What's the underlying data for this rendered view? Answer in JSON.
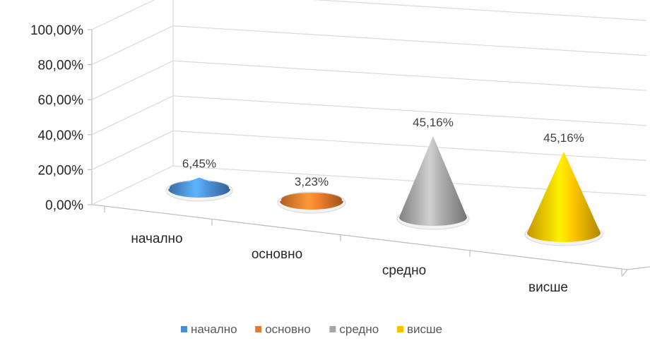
{
  "chart_data": {
    "type": "bar",
    "shape": "3d-cone",
    "title": "",
    "xlabel": "",
    "ylabel": "",
    "categories": [
      "начално",
      "основно",
      "средно",
      "висше"
    ],
    "values": [
      6.45,
      3.23,
      45.16,
      45.16
    ],
    "data_labels": [
      "6,45%",
      "3,23%",
      "45,16%",
      "45,16%"
    ],
    "ylim": [
      0,
      100
    ],
    "y_ticks": [
      "0,00%",
      "20,00%",
      "40,00%",
      "60,00%",
      "80,00%",
      "100,00%"
    ],
    "colors": [
      "#4a8fd6",
      "#e57a2b",
      "#a6a6a6",
      "#ffc000"
    ],
    "legend": {
      "position": "bottom",
      "entries": [
        "начално",
        "основно",
        "средно",
        "висше"
      ]
    },
    "grid": true
  }
}
